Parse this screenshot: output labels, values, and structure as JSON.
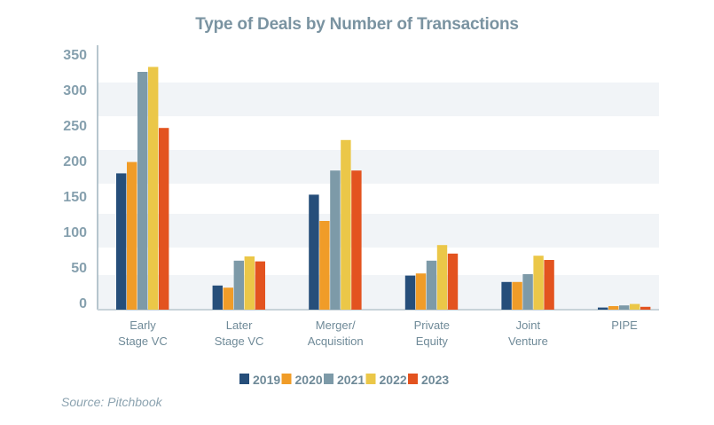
{
  "chart_data": {
    "type": "bar",
    "title": "Type of Deals by Number of Transactions",
    "source": "Source: Pitchbook",
    "categories": [
      [
        "Early",
        "Stage VC"
      ],
      [
        "Later",
        "Stage VC"
      ],
      [
        "Merger/",
        "Acquisition"
      ],
      [
        "Private",
        "Equity"
      ],
      [
        "Joint",
        "Venture"
      ],
      [
        "PIPE"
      ]
    ],
    "series": [
      {
        "name": "2019",
        "color": "#264e7a",
        "values": [
          192,
          34,
          162,
          48,
          39,
          3
        ]
      },
      {
        "name": "2020",
        "color": "#f09c28",
        "values": [
          208,
          31,
          125,
          51,
          39,
          5
        ]
      },
      {
        "name": "2021",
        "color": "#7d9aa8",
        "values": [
          335,
          69,
          196,
          69,
          50,
          6
        ]
      },
      {
        "name": "2022",
        "color": "#ebc748",
        "values": [
          342,
          75,
          239,
          91,
          76,
          8
        ]
      },
      {
        "name": "2023",
        "color": "#e3531f",
        "values": [
          256,
          68,
          196,
          79,
          70,
          4
        ]
      }
    ],
    "yticks": [
      "0",
      "50",
      "100",
      "150",
      "200",
      "250",
      "300",
      "350"
    ],
    "ylim": [
      0,
      350
    ],
    "grid": "alternating horizontal bands",
    "legend": "bottom"
  }
}
